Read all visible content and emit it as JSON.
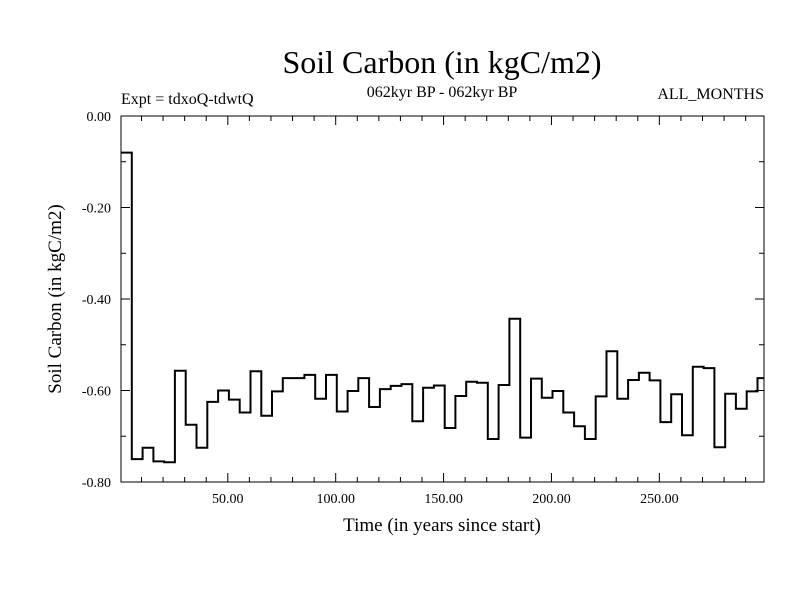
{
  "chart_data": {
    "type": "line",
    "step": true,
    "title": "Soil Carbon (in kgC/m2)",
    "left_label": "Expt = tdxoQ-tdwtQ",
    "center_label": "062kyr BP - 062kyr BP",
    "right_label": "ALL_MONTHS",
    "xlabel": "Time (in years since start)",
    "ylabel": "Soil Carbon (in kgC/m2)",
    "xlim": [
      0.5,
      298.5
    ],
    "ylim": [
      -0.8,
      0.0
    ],
    "x_ticks": [
      50,
      100,
      150,
      200,
      250
    ],
    "x_tick_labels": [
      "50.00",
      "100.00",
      "150.00",
      "200.00",
      "250.00"
    ],
    "y_ticks": [
      0.0,
      -0.2,
      -0.4,
      -0.6,
      -0.8
    ],
    "y_tick_labels": [
      "0.00",
      "-0.20",
      "-0.40",
      "-0.60",
      "-0.80"
    ],
    "grid": false,
    "legend": "none",
    "line_color": "#000000",
    "series": [
      {
        "x": [
          0.5,
          5.5,
          10.5,
          15.5,
          20.5,
          25.5,
          30.5,
          35.5,
          40.5,
          45.5,
          50.5,
          55.5,
          60.5,
          65.5,
          70.5,
          75.5,
          80.5,
          85.5,
          90.5,
          95.5,
          100.5,
          105.5,
          110.5,
          115.5,
          120.5,
          125.5,
          130.5,
          135.5,
          140.5,
          145.5,
          150.5,
          155.5,
          160.5,
          165.5,
          170.5,
          175.5,
          180.5,
          185.5,
          190.5,
          195.5,
          200.5,
          205.5,
          210.5,
          215.5,
          220.5,
          225.5,
          230.5,
          235.5,
          240.5,
          245.5,
          250.5,
          255.5,
          260.5,
          265.5,
          270.5,
          275.5,
          280.5,
          285.5,
          290.5,
          295.5,
          298.5
        ],
        "y": [
          -0.08,
          -0.75,
          -0.725,
          -0.755,
          -0.757,
          -0.557,
          -0.675,
          -0.725,
          -0.625,
          -0.6,
          -0.62,
          -0.648,
          -0.558,
          -0.655,
          -0.602,
          -0.573,
          -0.573,
          -0.566,
          -0.618,
          -0.566,
          -0.646,
          -0.601,
          -0.573,
          -0.636,
          -0.597,
          -0.59,
          -0.586,
          -0.667,
          -0.594,
          -0.589,
          -0.682,
          -0.612,
          -0.581,
          -0.583,
          -0.706,
          -0.588,
          -0.443,
          -0.703,
          -0.574,
          -0.616,
          -0.601,
          -0.648,
          -0.678,
          -0.706,
          -0.613,
          -0.514,
          -0.618,
          -0.577,
          -0.561,
          -0.578,
          -0.669,
          -0.608,
          -0.698,
          -0.548,
          -0.551,
          -0.724,
          -0.607,
          -0.64,
          -0.602,
          -0.573,
          -0.573
        ]
      }
    ]
  }
}
